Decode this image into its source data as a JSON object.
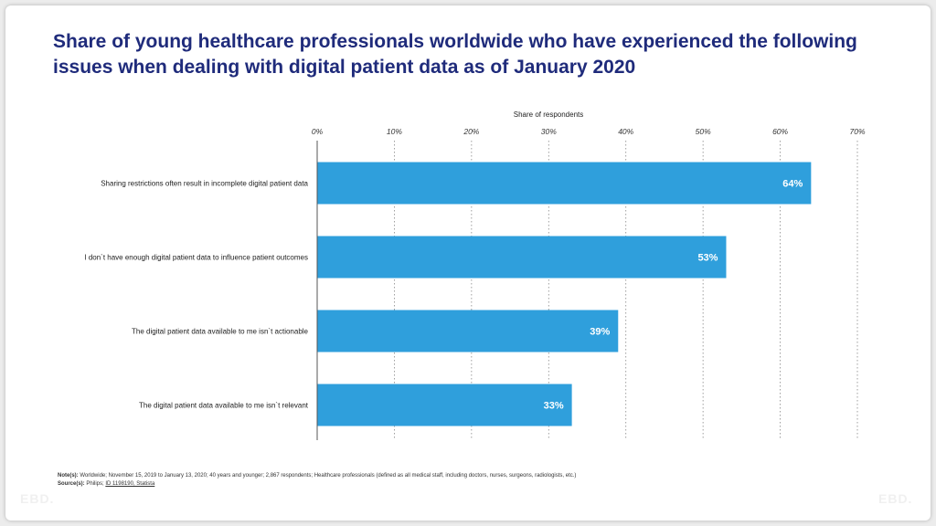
{
  "title": "Share of young healthcare professionals worldwide who have experienced the following issues when dealing with digital patient data as of January 2020",
  "notes_label": "Note(s):",
  "notes_text": " Worldwide; November 15, 2019 to January 13, 2020; 40 years and younger; 2,867 respondents; Healthcare professionals (defined as all medical staff, including doctors, nurses, surgeons, radiologists, etc.)",
  "source_label": "Source(s):",
  "source_text": " Philips; ",
  "source_link": "ID 1198190, Statista",
  "watermark": "EBD.",
  "colors": {
    "bar": "#2f9fdc",
    "title": "#1f2b7b",
    "grid": "#888888"
  },
  "chart_data": {
    "type": "bar",
    "orientation": "horizontal",
    "xlabel": "Share of respondents",
    "xlim": [
      0,
      70
    ],
    "ticks": [
      0,
      10,
      20,
      30,
      40,
      50,
      60,
      70
    ],
    "tick_labels": [
      "0%",
      "10%",
      "20%",
      "30%",
      "40%",
      "50%",
      "60%",
      "70%"
    ],
    "grid": "vertical dotted",
    "categories": [
      "Sharing restrictions often result in incomplete digital patient data",
      "I don`t have enough digital patient data to influence patient outcomes",
      "The digital patient data available to me isn`t actionable",
      "The digital patient data available to me isn`t relevant"
    ],
    "values": [
      64,
      53,
      39,
      33
    ],
    "data_labels": [
      "64%",
      "53%",
      "39%",
      "33%"
    ]
  }
}
